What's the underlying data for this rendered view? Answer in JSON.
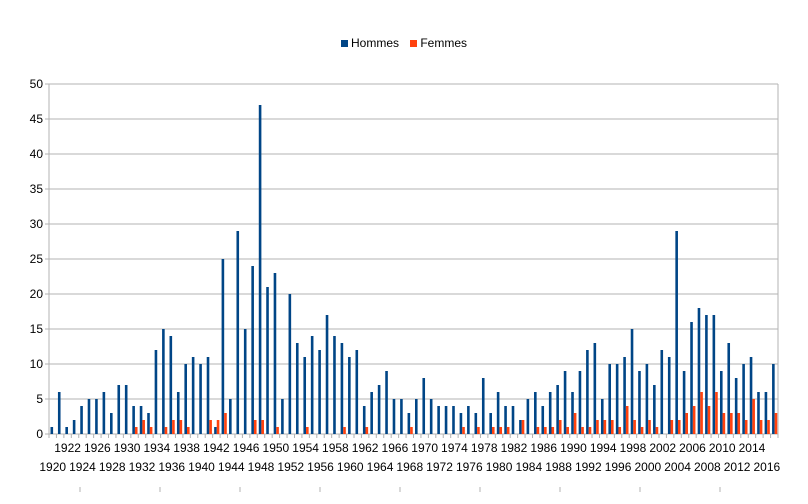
{
  "chart_data": {
    "type": "bar",
    "title": "",
    "xlabel": "",
    "ylabel": "",
    "ylim": [
      0,
      50
    ],
    "yticks": [
      0,
      5,
      10,
      15,
      20,
      25,
      30,
      35,
      40,
      45,
      50
    ],
    "grid": true,
    "legend_position": "top",
    "x_start": 1920,
    "categories": [
      "1920",
      "1921",
      "1922",
      "1923",
      "1924",
      "1925",
      "1926",
      "1927",
      "1928",
      "1929",
      "1930",
      "1931",
      "1932",
      "1933",
      "1934",
      "1935",
      "1936",
      "1937",
      "1938",
      "1939",
      "1940",
      "1941",
      "1942",
      "1943",
      "1944",
      "1945",
      "1946",
      "1947",
      "1948",
      "1949",
      "1950",
      "1951",
      "1952",
      "1953",
      "1954",
      "1955",
      "1956",
      "1957",
      "1958",
      "1959",
      "1960",
      "1961",
      "1962",
      "1963",
      "1964",
      "1965",
      "1966",
      "1967",
      "1968",
      "1969",
      "1970",
      "1971",
      "1972",
      "1973",
      "1974",
      "1975",
      "1976",
      "1977",
      "1978",
      "1979",
      "1980",
      "1981",
      "1982",
      "1983",
      "1984",
      "1985",
      "1986",
      "1987",
      "1988",
      "1989",
      "1990",
      "1991",
      "1992",
      "1993",
      "1994",
      "1995",
      "1996",
      "1997",
      "1998",
      "1999",
      "2000",
      "2001",
      "2002",
      "2003",
      "2004",
      "2005",
      "2006",
      "2007",
      "2008",
      "2009",
      "2010",
      "2011",
      "2012",
      "2013",
      "2014",
      "2015",
      "2016",
      "2017"
    ],
    "series": [
      {
        "name": "Hommes",
        "color": "#004586",
        "values": [
          1,
          6,
          1,
          2,
          4,
          5,
          5,
          6,
          3,
          7,
          7,
          4,
          4,
          3,
          12,
          15,
          14,
          6,
          10,
          11,
          10,
          11,
          1,
          25,
          5,
          29,
          15,
          24,
          47,
          21,
          23,
          5,
          20,
          13,
          11,
          14,
          12,
          17,
          14,
          13,
          11,
          12,
          4,
          6,
          7,
          9,
          5,
          5,
          3,
          5,
          8,
          5,
          4,
          4,
          4,
          3,
          4,
          3,
          8,
          3,
          6,
          4,
          4,
          2,
          5,
          6,
          4,
          6,
          7,
          9,
          6,
          9,
          12,
          13,
          5,
          10,
          10,
          11,
          15,
          9,
          10,
          7,
          12,
          11,
          29,
          9,
          16,
          18,
          17,
          17,
          9,
          13,
          8,
          10,
          11,
          6,
          6,
          10
        ]
      },
      {
        "name": "Femmes",
        "color": "#ff420e",
        "values": [
          0,
          0,
          0,
          0,
          0,
          0,
          0,
          0,
          0,
          0,
          0,
          1,
          2,
          1,
          0,
          1,
          2,
          2,
          1,
          0,
          0,
          2,
          2,
          3,
          0,
          0,
          0,
          2,
          2,
          0,
          1,
          0,
          0,
          0,
          1,
          0,
          0,
          0,
          0,
          1,
          0,
          0,
          1,
          0,
          0,
          0,
          0,
          0,
          1,
          0,
          0,
          0,
          0,
          0,
          0,
          1,
          0,
          1,
          0,
          1,
          1,
          1,
          0,
          2,
          0,
          1,
          1,
          1,
          2,
          1,
          3,
          1,
          1,
          2,
          2,
          2,
          1,
          4,
          2,
          1,
          2,
          1,
          0,
          2,
          2,
          3,
          4,
          6,
          4,
          6,
          3,
          3,
          3,
          2,
          5,
          2,
          2,
          3
        ]
      }
    ],
    "xtick_labels_top": [
      "1922",
      "1926",
      "1930",
      "1934",
      "1938",
      "1942",
      "1946",
      "1950",
      "1954",
      "1958",
      "1962",
      "1966",
      "1970",
      "1974",
      "1978",
      "1982",
      "1986",
      "1990",
      "1994",
      "1998",
      "2002",
      "2006",
      "2010",
      "2014"
    ],
    "xtick_labels_bottom": [
      "1920",
      "1924",
      "1928",
      "1932",
      "1936",
      "1940",
      "1944",
      "1948",
      "1952",
      "1956",
      "1960",
      "1964",
      "1968",
      "1972",
      "1976",
      "1980",
      "1984",
      "1988",
      "1992",
      "1996",
      "2000",
      "2004",
      "2008",
      "2012",
      "2016"
    ]
  }
}
